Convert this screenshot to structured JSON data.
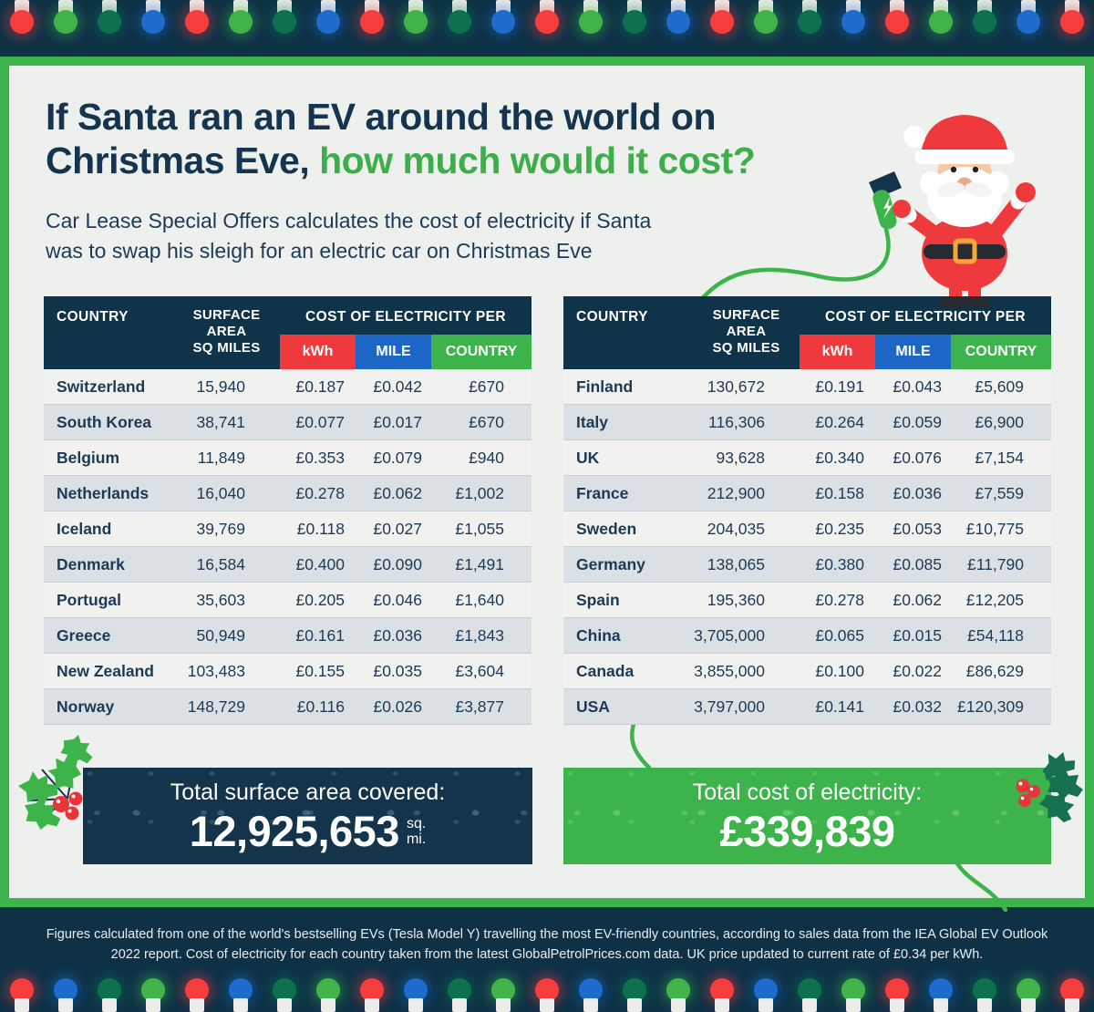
{
  "header": {
    "title_line1": "If Santa ran an EV around the world on",
    "title_line2_dark": "Christmas Eve, ",
    "title_line2_green": "how much would it cost?",
    "subtitle_line1": "Car Lease Special Offers calculates the cost of electricity if Santa",
    "subtitle_line2": "was to swap his sleigh for an electric car on Christmas Eve"
  },
  "chart_data": {
    "type": "table",
    "title": "If Santa ran an EV around the world on Christmas Eve, how much would it cost?",
    "columns": {
      "country": "COUNTRY",
      "surface_lines": [
        "SURFACE",
        "AREA",
        "SQ MILES"
      ],
      "cost_group": "COST OF ELECTRICITY PER",
      "kwh": "kWh",
      "mile": "MILE",
      "per_country": "COUNTRY"
    },
    "left_rows": [
      {
        "country": "Switzerland",
        "surface": "15,940",
        "kwh": "£0.187",
        "mile": "£0.042",
        "cost": "£670"
      },
      {
        "country": "South Korea",
        "surface": "38,741",
        "kwh": "£0.077",
        "mile": "£0.017",
        "cost": "£670"
      },
      {
        "country": "Belgium",
        "surface": "11,849",
        "kwh": "£0.353",
        "mile": "£0.079",
        "cost": "£940"
      },
      {
        "country": "Netherlands",
        "surface": "16,040",
        "kwh": "£0.278",
        "mile": "£0.062",
        "cost": "£1,002"
      },
      {
        "country": "Iceland",
        "surface": "39,769",
        "kwh": "£0.118",
        "mile": "£0.027",
        "cost": "£1,055"
      },
      {
        "country": "Denmark",
        "surface": "16,584",
        "kwh": "£0.400",
        "mile": "£0.090",
        "cost": "£1,491"
      },
      {
        "country": "Portugal",
        "surface": "35,603",
        "kwh": "£0.205",
        "mile": "£0.046",
        "cost": "£1,640"
      },
      {
        "country": "Greece",
        "surface": "50,949",
        "kwh": "£0.161",
        "mile": "£0.036",
        "cost": "£1,843"
      },
      {
        "country": "New Zealand",
        "surface": "103,483",
        "kwh": "£0.155",
        "mile": "£0.035",
        "cost": "£3,604"
      },
      {
        "country": "Norway",
        "surface": "148,729",
        "kwh": "£0.116",
        "mile": "£0.026",
        "cost": "£3,877"
      }
    ],
    "right_rows": [
      {
        "country": "Finland",
        "surface": "130,672",
        "kwh": "£0.191",
        "mile": "£0.043",
        "cost": "£5,609"
      },
      {
        "country": "Italy",
        "surface": "116,306",
        "kwh": "£0.264",
        "mile": "£0.059",
        "cost": "£6,900"
      },
      {
        "country": "UK",
        "surface": "93,628",
        "kwh": "£0.340",
        "mile": "£0.076",
        "cost": "£7,154"
      },
      {
        "country": "France",
        "surface": "212,900",
        "kwh": "£0.158",
        "mile": "£0.036",
        "cost": "£7,559"
      },
      {
        "country": "Sweden",
        "surface": "204,035",
        "kwh": "£0.235",
        "mile": "£0.053",
        "cost": "£10,775"
      },
      {
        "country": "Germany",
        "surface": "138,065",
        "kwh": "£0.380",
        "mile": "£0.085",
        "cost": "£11,790"
      },
      {
        "country": "Spain",
        "surface": "195,360",
        "kwh": "£0.278",
        "mile": "£0.062",
        "cost": "£12,205"
      },
      {
        "country": "China",
        "surface": "3,705,000",
        "kwh": "£0.065",
        "mile": "£0.015",
        "cost": "£54,118"
      },
      {
        "country": "Canada",
        "surface": "3,855,000",
        "kwh": "£0.100",
        "mile": "£0.022",
        "cost": "£86,629"
      },
      {
        "country": "USA",
        "surface": "3,797,000",
        "kwh": "£0.141",
        "mile": "£0.032",
        "cost": "£120,309"
      }
    ],
    "totals": {
      "surface_label": "Total surface area covered:",
      "surface_value": "12,925,653",
      "surface_unit_line1": "sq.",
      "surface_unit_line2": "mi.",
      "cost_label": "Total cost of electricity:",
      "cost_value": "£339,839"
    }
  },
  "footer": {
    "text": "Figures calculated from one of the world's bestselling EVs (Tesla Model Y) travelling the most EV-friendly countries, according to sales data from the IEA Global EV Outlook 2022 report. Cost of electricity for each country taken from the latest GlobalPetrolPrices.com data. UK price updated to current rate of £0.34 per kWh."
  },
  "lights": {
    "count": 25,
    "top_pattern": [
      "red",
      "green",
      "darkgreen",
      "blue"
    ],
    "bottom_pattern": [
      "red",
      "blue",
      "darkgreen",
      "green"
    ],
    "palette": {
      "red": "#f63e3e",
      "green": "#41b549",
      "darkgreen": "#0d7150",
      "blue": "#1d6bcb"
    }
  },
  "colors": {
    "navy": "#0e3146",
    "panel_green_frame": "#3db34c",
    "panel_bg": "#eef0ed",
    "accent_red": "#ee3a3d",
    "accent_blue": "#1d66c5",
    "accent_green": "#3db34c",
    "title_navy": "#14344f",
    "title_green": "#3dae4b",
    "row_alt": "#dbe0e4"
  }
}
